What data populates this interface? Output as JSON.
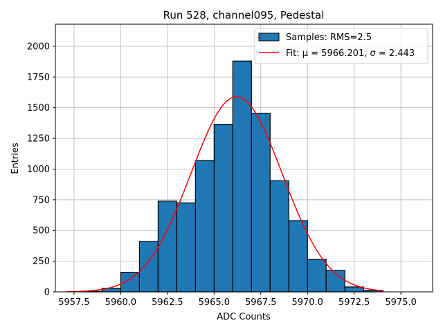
{
  "chart_data": {
    "type": "bar",
    "title": "Run 528, channel095, Pedestal",
    "xlabel": "ADC Counts",
    "ylabel": "Entries",
    "xlim": [
      5956.5,
      5976.7
    ],
    "ylim": [
      0,
      2180
    ],
    "xticks": [
      5957.5,
      5960.0,
      5962.5,
      5965.0,
      5967.5,
      5970.0,
      5972.5,
      5975.0
    ],
    "xtick_labels": [
      "5957.5",
      "5960.0",
      "5962.5",
      "5965.0",
      "5967.5",
      "5970.0",
      "5972.5",
      "5975.0"
    ],
    "yticks": [
      0,
      250,
      500,
      750,
      1000,
      1250,
      1500,
      1750,
      2000
    ],
    "ytick_labels": [
      "0",
      "250",
      "500",
      "750",
      "1000",
      "1250",
      "1500",
      "1750",
      "2000"
    ],
    "grid": true,
    "bin_width": 1,
    "bins": [
      {
        "left": 5958,
        "value": 5
      },
      {
        "left": 5959,
        "value": 30
      },
      {
        "left": 5960,
        "value": 160
      },
      {
        "left": 5961,
        "value": 410
      },
      {
        "left": 5962,
        "value": 740
      },
      {
        "left": 5963,
        "value": 725
      },
      {
        "left": 5964,
        "value": 1070
      },
      {
        "left": 5965,
        "value": 1365
      },
      {
        "left": 5966,
        "value": 1880
      },
      {
        "left": 5967,
        "value": 1455
      },
      {
        "left": 5968,
        "value": 905
      },
      {
        "left": 5969,
        "value": 580
      },
      {
        "left": 5970,
        "value": 265
      },
      {
        "left": 5971,
        "value": 175
      },
      {
        "left": 5972,
        "value": 40
      },
      {
        "left": 5973,
        "value": 12
      }
    ],
    "fit": {
      "mu": 5966.201,
      "sigma": 2.443,
      "peak": 1590,
      "x_range": [
        5957.1,
        5974.1
      ],
      "color": "#ff0000"
    },
    "bar_color": "#1f77b4",
    "legend": {
      "position": "top-right",
      "entries": [
        {
          "label": "Samples: RMS=2.5",
          "kind": "patch"
        },
        {
          "label": "Fit: μ = 5966.201, σ = 2.443",
          "kind": "line"
        }
      ]
    }
  }
}
